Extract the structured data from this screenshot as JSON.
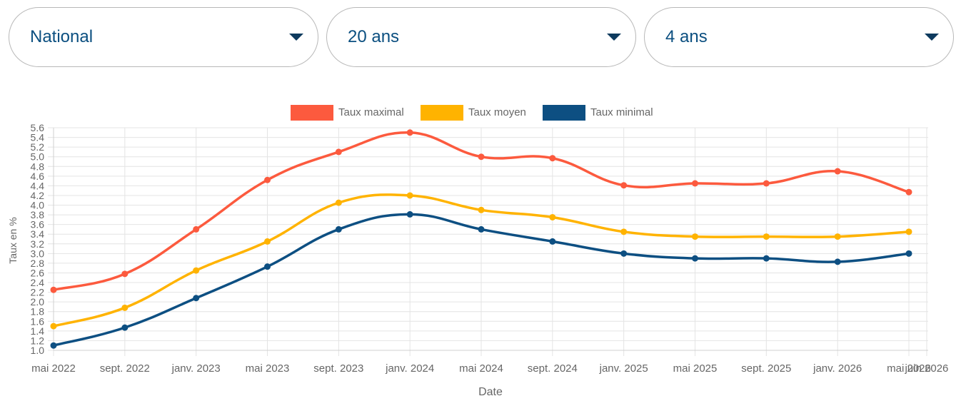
{
  "filters": {
    "region": {
      "value": "National"
    },
    "duration": {
      "value": "20 ans"
    },
    "period": {
      "value": "4 ans"
    }
  },
  "icons": {
    "dropdown": "chevron-down-icon"
  },
  "chart_data": {
    "type": "line",
    "xlabel": "Date",
    "ylabel": "Taux en %",
    "ylim": [
      1.0,
      5.6
    ],
    "y_ticks": [
      "1.0",
      "1.2",
      "1.4",
      "1.6",
      "1.8",
      "2.0",
      "2.2",
      "2.4",
      "2.6",
      "2.8",
      "3.0",
      "3.2",
      "3.4",
      "3.6",
      "3.8",
      "4.0",
      "4.2",
      "4.4",
      "4.6",
      "4.8",
      "5.0",
      "5.2",
      "5.4",
      "5.6"
    ],
    "x_ticks": [
      "mai 2022",
      "sept. 2022",
      "janv. 2023",
      "mai 2023",
      "sept. 2023",
      "janv. 2024",
      "mai 2024",
      "sept. 2024",
      "janv. 2025",
      "mai 2025",
      "sept. 2025",
      "janv. 2026",
      "mai 2026",
      "juin 2026"
    ],
    "grid": true,
    "legend_position": "top",
    "series": [
      {
        "name": "Taux maximal",
        "color": "#fc5a3e",
        "values": [
          2.25,
          2.58,
          3.5,
          4.52,
          5.1,
          5.5,
          5.0,
          4.97,
          4.41,
          4.45,
          4.45,
          4.7,
          4.27
        ]
      },
      {
        "name": "Taux moyen",
        "color": "#ffb300",
        "values": [
          1.5,
          1.88,
          2.65,
          3.25,
          4.05,
          4.2,
          3.9,
          3.75,
          3.45,
          3.35,
          3.35,
          3.35,
          3.45
        ]
      },
      {
        "name": "Taux minimal",
        "color": "#0d4f82",
        "values": [
          1.1,
          1.47,
          2.08,
          2.73,
          3.5,
          3.81,
          3.5,
          3.25,
          3.0,
          2.9,
          2.9,
          2.83,
          3.0
        ]
      }
    ]
  }
}
